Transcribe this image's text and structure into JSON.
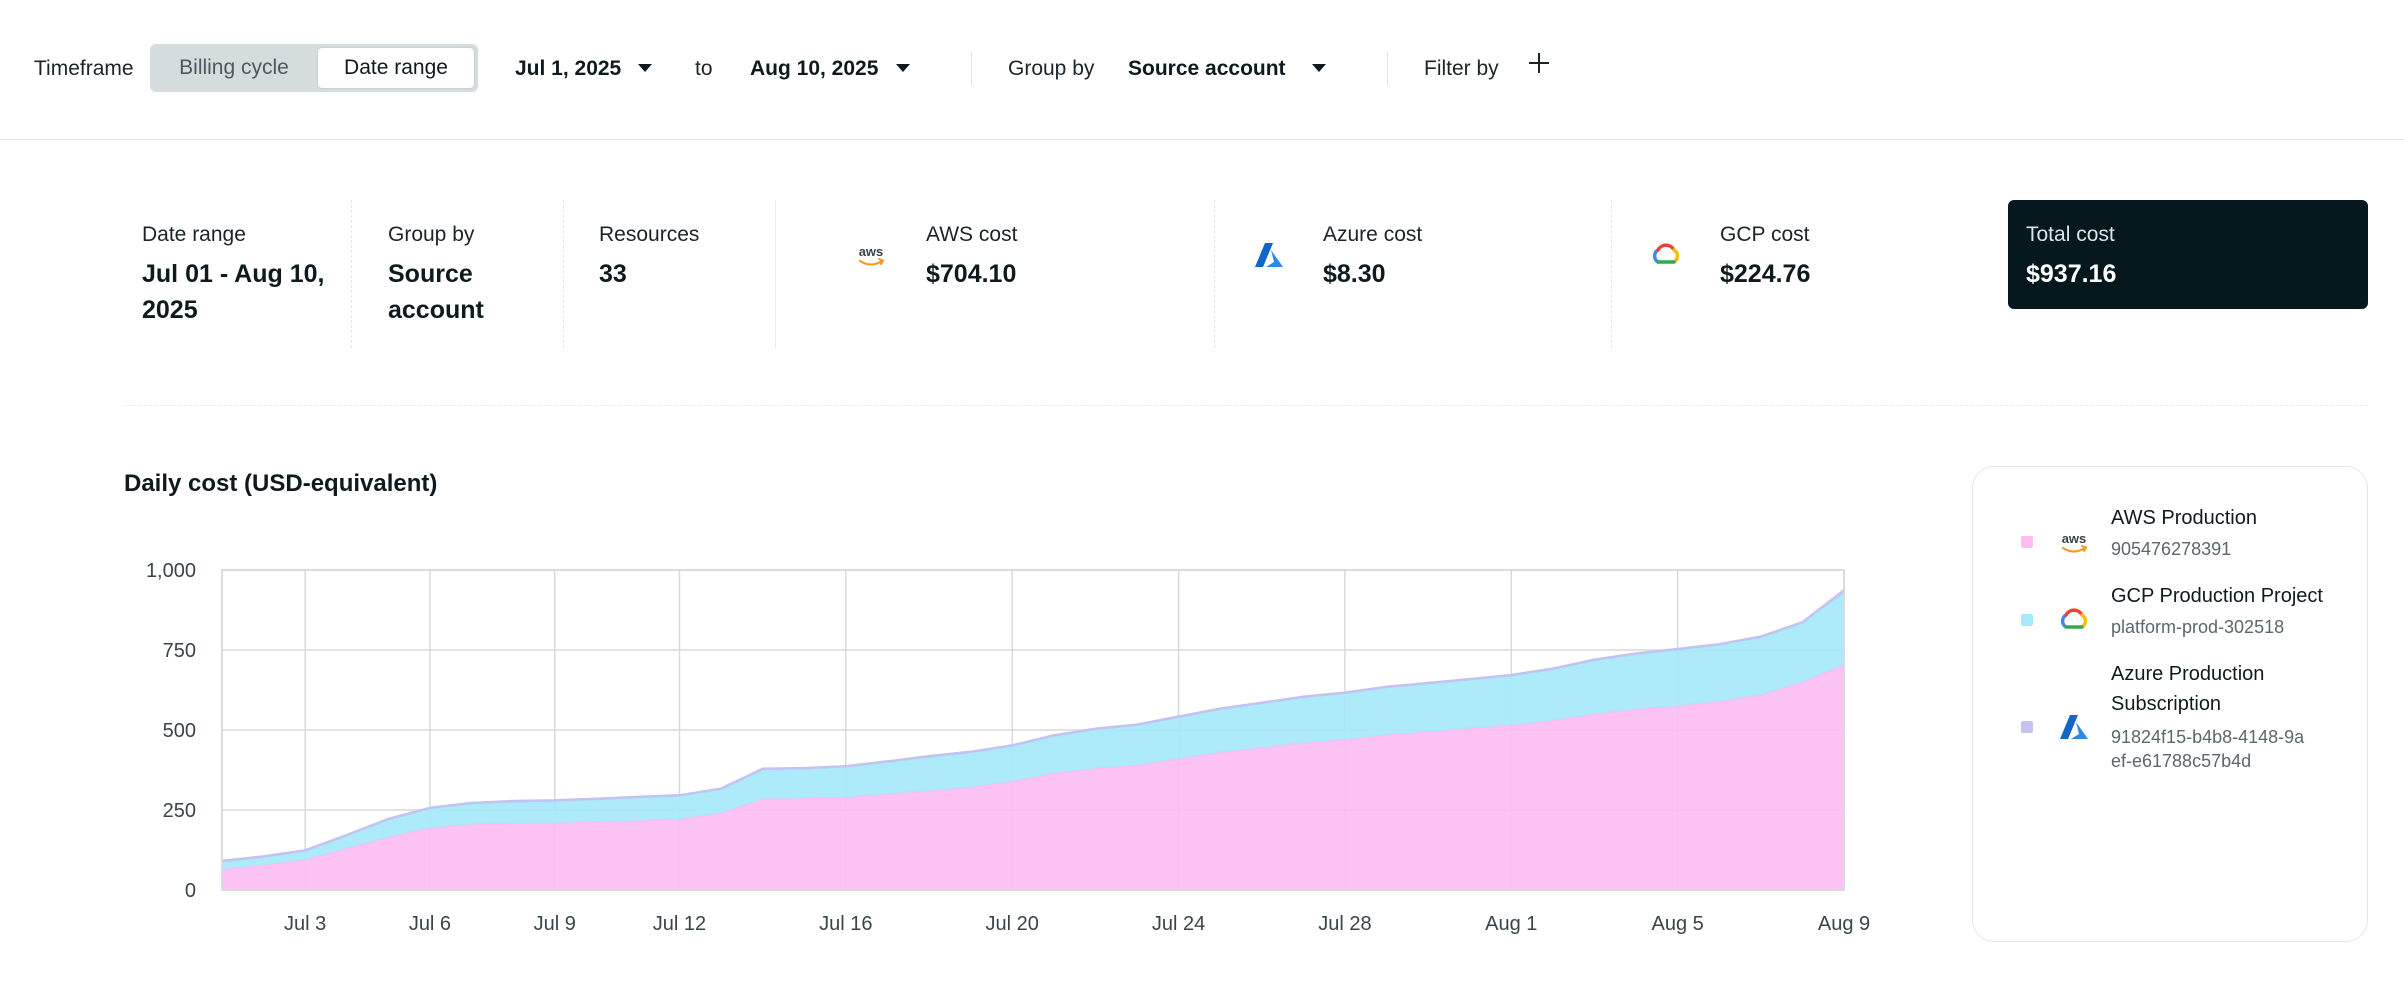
{
  "toolbar": {
    "timeframe_label": "Timeframe",
    "segments": [
      {
        "label": "Billing cycle",
        "active": false
      },
      {
        "label": "Date range",
        "active": true
      }
    ],
    "start_date": "Jul 1, 2025",
    "to_label": "to",
    "end_date": "Aug 10, 2025",
    "group_by_label": "Group by",
    "group_by_value": "Source account",
    "filter_by_label": "Filter by"
  },
  "summary": {
    "date_range": {
      "label": "Date range",
      "value_line1": "Jul 01 - Aug 10,",
      "value_line2": "2025"
    },
    "group_by": {
      "label": "Group by",
      "value_line1": "Source",
      "value_line2": "account"
    },
    "resources": {
      "label": "Resources",
      "value": "33"
    },
    "aws": {
      "label": "AWS cost",
      "value": "$704.10",
      "icon": "aws-logo-icon"
    },
    "azure": {
      "label": "Azure cost",
      "value": "$8.30",
      "icon": "azure-logo-icon"
    },
    "gcp": {
      "label": "GCP cost",
      "value": "$224.76",
      "icon": "gcp-logo-icon"
    },
    "total": {
      "label": "Total cost",
      "value": "$937.16"
    }
  },
  "colors": {
    "aws_series": "#fdbdf3",
    "gcp_series": "#a6e9fb",
    "azure_series": "#c4c2f0",
    "total_card": "#06181d",
    "aws_orange": "#f29a23",
    "azure_blue": "#1266c5"
  },
  "chart": {
    "title": "Daily cost (USD-equivalent)"
  },
  "chart_data": {
    "type": "area",
    "stacked": true,
    "title": "Daily cost (USD-equivalent)",
    "xlabel": "",
    "ylabel": "",
    "ylim": [
      0,
      1000
    ],
    "yticks": [
      0,
      250,
      500,
      750,
      1000
    ],
    "ytick_labels": [
      "0",
      "250",
      "500",
      "750",
      "1,000"
    ],
    "xlim": [
      "2025-07-01",
      "2025-08-09"
    ],
    "xticks": [
      "2025-07-03",
      "2025-07-06",
      "2025-07-09",
      "2025-07-12",
      "2025-07-16",
      "2025-07-20",
      "2025-07-24",
      "2025-07-28",
      "2025-08-01",
      "2025-08-05",
      "2025-08-09"
    ],
    "xtick_labels": [
      "Jul 3",
      "Jul 6",
      "Jul 9",
      "Jul 12",
      "Jul 16",
      "Jul 20",
      "Jul 24",
      "Jul 28",
      "Aug 1",
      "Aug 5",
      "Aug 9"
    ],
    "x": [
      "2025-07-01",
      "2025-07-02",
      "2025-07-03",
      "2025-07-04",
      "2025-07-05",
      "2025-07-06",
      "2025-07-07",
      "2025-07-08",
      "2025-07-09",
      "2025-07-10",
      "2025-07-11",
      "2025-07-12",
      "2025-07-13",
      "2025-07-14",
      "2025-07-15",
      "2025-07-16",
      "2025-07-17",
      "2025-07-18",
      "2025-07-19",
      "2025-07-20",
      "2025-07-21",
      "2025-07-22",
      "2025-07-23",
      "2025-07-24",
      "2025-07-25",
      "2025-07-26",
      "2025-07-27",
      "2025-07-28",
      "2025-07-29",
      "2025-07-30",
      "2025-07-31",
      "2025-08-01",
      "2025-08-02",
      "2025-08-03",
      "2025-08-04",
      "2025-08-05",
      "2025-08-06",
      "2025-08-07",
      "2025-08-08",
      "2025-08-09"
    ],
    "series": [
      {
        "name": "AWS Production",
        "color": "#fdbdf3",
        "values": [
          65,
          78,
          95,
          130,
          165,
          195,
          205,
          208,
          210,
          213,
          217,
          222,
          240,
          285,
          287,
          290,
          300,
          310,
          322,
          340,
          365,
          380,
          390,
          410,
          430,
          445,
          460,
          470,
          485,
          495,
          505,
          515,
          530,
          550,
          565,
          575,
          590,
          610,
          650,
          704
        ]
      },
      {
        "name": "GCP Production Project",
        "color": "#a6e9fb",
        "values": [
          24,
          25,
          27,
          40,
          55,
          60,
          65,
          68,
          68,
          70,
          72,
          72,
          75,
          92,
          92,
          95,
          100,
          106,
          108,
          110,
          116,
          122,
          125,
          130,
          135,
          138,
          142,
          145,
          148,
          150,
          152,
          155,
          160,
          168,
          172,
          176,
          176,
          180,
          185,
          225
        ]
      },
      {
        "name": "Azure Production Subscription",
        "color": "#c4c2f0",
        "values": [
          2,
          2,
          2,
          2,
          2,
          2,
          2,
          2,
          2,
          2,
          2,
          2,
          2,
          2,
          2,
          2,
          2,
          2,
          2,
          2,
          2,
          2,
          2,
          2,
          2,
          2,
          2,
          2,
          2,
          2,
          2,
          2,
          2,
          2,
          2,
          2,
          2,
          2,
          2,
          8
        ]
      }
    ]
  },
  "legend": [
    {
      "name": "AWS Production",
      "sub": "905476278391",
      "icon": "aws-logo-icon",
      "color": "#fdbdf3"
    },
    {
      "name": "GCP Production Project",
      "sub": "platform-prod-302518",
      "icon": "gcp-logo-icon",
      "color": "#a6e9fb"
    },
    {
      "name_line1": "Azure Production",
      "name_line2": "Subscription",
      "sub": "91824f15-b4b8-4148-9aef-e61788c57b4d",
      "icon": "azure-logo-icon",
      "color": "#c4c2f0"
    }
  ]
}
